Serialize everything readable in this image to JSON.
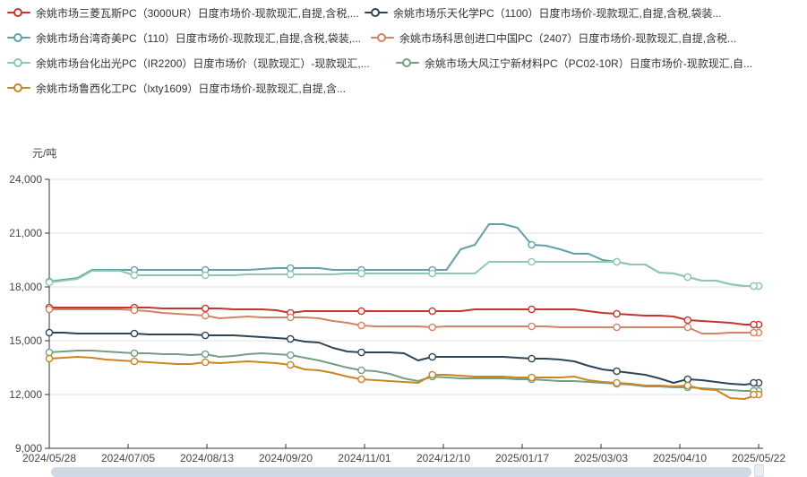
{
  "page": {
    "background": "#ffffff"
  },
  "chart_data": {
    "type": "line",
    "title": "",
    "ylabel": "元/吨",
    "xlabel": "",
    "ylim": [
      9000,
      24000
    ],
    "grid": true,
    "legend_position": "top",
    "ytick_values": [
      24000,
      21000,
      18000,
      15000,
      12000,
      9000
    ],
    "ytick_labels": [
      "24,000",
      "21,000",
      "18,000",
      "15,000",
      "12,000",
      "9,000"
    ],
    "xticks": [
      "2024/05/28",
      "2024/07/05",
      "2024/08/13",
      "2024/09/20",
      "2024/11/01",
      "2024/12/10",
      "2025/01/17",
      "2025/03/03",
      "2025/04/10",
      "2025/05/22"
    ],
    "marker_indices": [
      0,
      6,
      11,
      17,
      22,
      27,
      34,
      40,
      45,
      50
    ],
    "x": [
      "2024/05/28",
      "2024/06/04",
      "2024/06/11",
      "2024/06/18",
      "2024/06/25",
      "2024/07/02",
      "2024/07/09",
      "2024/07/16",
      "2024/07/23",
      "2024/07/30",
      "2024/08/06",
      "2024/08/13",
      "2024/08/20",
      "2024/08/27",
      "2024/09/03",
      "2024/09/10",
      "2024/09/17",
      "2024/09/24",
      "2024/10/08",
      "2024/10/15",
      "2024/10/22",
      "2024/10/29",
      "2024/11/05",
      "2024/11/12",
      "2024/11/19",
      "2024/11/26",
      "2024/12/03",
      "2024/12/10",
      "2024/12/17",
      "2024/12/24",
      "2024/12/31",
      "2025/01/07",
      "2025/01/10",
      "2025/01/14",
      "2025/01/17",
      "2025/01/24",
      "2025/02/05",
      "2025/02/12",
      "2025/02/19",
      "2025/02/26",
      "2025/03/05",
      "2025/03/12",
      "2025/03/19",
      "2025/03/26",
      "2025/04/02",
      "2025/04/10",
      "2025/04/17",
      "2025/04/24",
      "2025/05/08",
      "2025/05/15",
      "2025/05/22"
    ],
    "series": [
      {
        "name": "余姚市场三菱瓦斯PC（3000UR）日度市场价-现款现汇,自提,含税,...",
        "color": "#c23531",
        "values": [
          16850,
          16850,
          16850,
          16850,
          16850,
          16850,
          16850,
          16850,
          16800,
          16800,
          16800,
          16800,
          16800,
          16750,
          16750,
          16750,
          16700,
          16550,
          16650,
          16650,
          16650,
          16650,
          16650,
          16650,
          16650,
          16650,
          16650,
          16650,
          16650,
          16650,
          16750,
          16750,
          16750,
          16750,
          16750,
          16750,
          16750,
          16750,
          16650,
          16550,
          16500,
          16450,
          16400,
          16400,
          16350,
          16150,
          16100,
          16050,
          16000,
          15900,
          15900
        ]
      },
      {
        "name": "余姚市场乐天化学PC（1100）日度市场价-现款现汇,自提,含税,袋装...",
        "color": "#2f4554",
        "values": [
          15450,
          15450,
          15400,
          15400,
          15400,
          15400,
          15400,
          15350,
          15350,
          15350,
          15350,
          15300,
          15300,
          15300,
          15250,
          15200,
          15150,
          15100,
          14950,
          14900,
          14600,
          14400,
          14350,
          14350,
          14350,
          14300,
          13900,
          14100,
          14100,
          14100,
          14100,
          14100,
          14100,
          14050,
          14000,
          14000,
          13950,
          13850,
          13600,
          13400,
          13300,
          13200,
          13100,
          12900,
          12650,
          12850,
          12800,
          12700,
          12600,
          12550,
          12650
        ]
      },
      {
        "name": "余姚市场台湾奇美PC（110）日度市场价-现款现汇,自提,含税,袋装,...",
        "color": "#61a0a8",
        "values": [
          18300,
          18400,
          18500,
          18950,
          18950,
          18950,
          18950,
          18950,
          18950,
          18950,
          18950,
          18950,
          18950,
          18950,
          18950,
          19000,
          19050,
          19050,
          19050,
          19050,
          18950,
          18950,
          18950,
          18950,
          18950,
          18950,
          18950,
          18950,
          18950,
          20100,
          20350,
          21500,
          21500,
          21300,
          20350,
          20300,
          20100,
          19850,
          19850,
          19500,
          19400,
          19250,
          19250,
          18800,
          18750,
          18550,
          18350,
          18350,
          18150,
          18050,
          18050
        ]
      },
      {
        "name": "余姚市场科思创进口中国PC（2407）日度市场价-现款现汇,自提,含税...",
        "color": "#d48265",
        "values": [
          16750,
          16750,
          16750,
          16750,
          16750,
          16750,
          16700,
          16650,
          16550,
          16500,
          16450,
          16400,
          16250,
          16300,
          16350,
          16300,
          16300,
          16300,
          16300,
          16250,
          16100,
          16000,
          15850,
          15800,
          15800,
          15800,
          15800,
          15750,
          15800,
          15800,
          15800,
          15800,
          15800,
          15800,
          15800,
          15800,
          15750,
          15750,
          15750,
          15750,
          15750,
          15750,
          15750,
          15750,
          15750,
          15750,
          15400,
          15400,
          15450,
          15450,
          15450
        ]
      },
      {
        "name": "余姚市场台化出光PC（IR2200）日度市场价（现款现汇）-现款现汇,...",
        "color": "#91c7ae",
        "values": [
          18250,
          18350,
          18450,
          18900,
          18900,
          18900,
          18650,
          18650,
          18650,
          18650,
          18650,
          18650,
          18650,
          18650,
          18700,
          18700,
          18700,
          18700,
          18700,
          18700,
          18700,
          18750,
          18750,
          18750,
          18750,
          18750,
          18750,
          18750,
          18750,
          18750,
          18750,
          19400,
          19400,
          19400,
          19400,
          19400,
          19400,
          19400,
          19400,
          19400,
          19400,
          19250,
          19250,
          18800,
          18750,
          18550,
          18350,
          18350,
          18150,
          18050,
          18050
        ]
      },
      {
        "name": "余姚市场大风江宁新材料PC（PC02-10R）日度市场价-现款现汇,自...",
        "color": "#749f83",
        "values": [
          14350,
          14400,
          14450,
          14450,
          14400,
          14350,
          14300,
          14300,
          14250,
          14250,
          14200,
          14250,
          14100,
          14150,
          14250,
          14300,
          14250,
          14200,
          14050,
          13900,
          13700,
          13500,
          13350,
          13300,
          13150,
          12900,
          12750,
          13000,
          12950,
          12900,
          12900,
          12900,
          12900,
          12850,
          12850,
          12800,
          12750,
          12750,
          12700,
          12650,
          12600,
          12550,
          12450,
          12450,
          12400,
          12400,
          12350,
          12300,
          12250,
          12200,
          12200
        ]
      },
      {
        "name": "余姚市场鲁西化工PC（lxty1609）日度市场价-现款现汇,自提,含...",
        "color": "#ca8622",
        "values": [
          14000,
          14050,
          14100,
          14050,
          13950,
          13900,
          13850,
          13800,
          13750,
          13700,
          13700,
          13800,
          13750,
          13800,
          13850,
          13800,
          13750,
          13650,
          13400,
          13350,
          13200,
          13000,
          12850,
          12800,
          12750,
          12700,
          12650,
          13100,
          13100,
          13050,
          13000,
          13000,
          13000,
          12950,
          12950,
          12950,
          12950,
          13000,
          12800,
          12700,
          12650,
          12600,
          12500,
          12500,
          12450,
          12500,
          12300,
          12250,
          11800,
          11750,
          12000
        ]
      }
    ]
  },
  "scrollbar": {
    "visible": true
  }
}
